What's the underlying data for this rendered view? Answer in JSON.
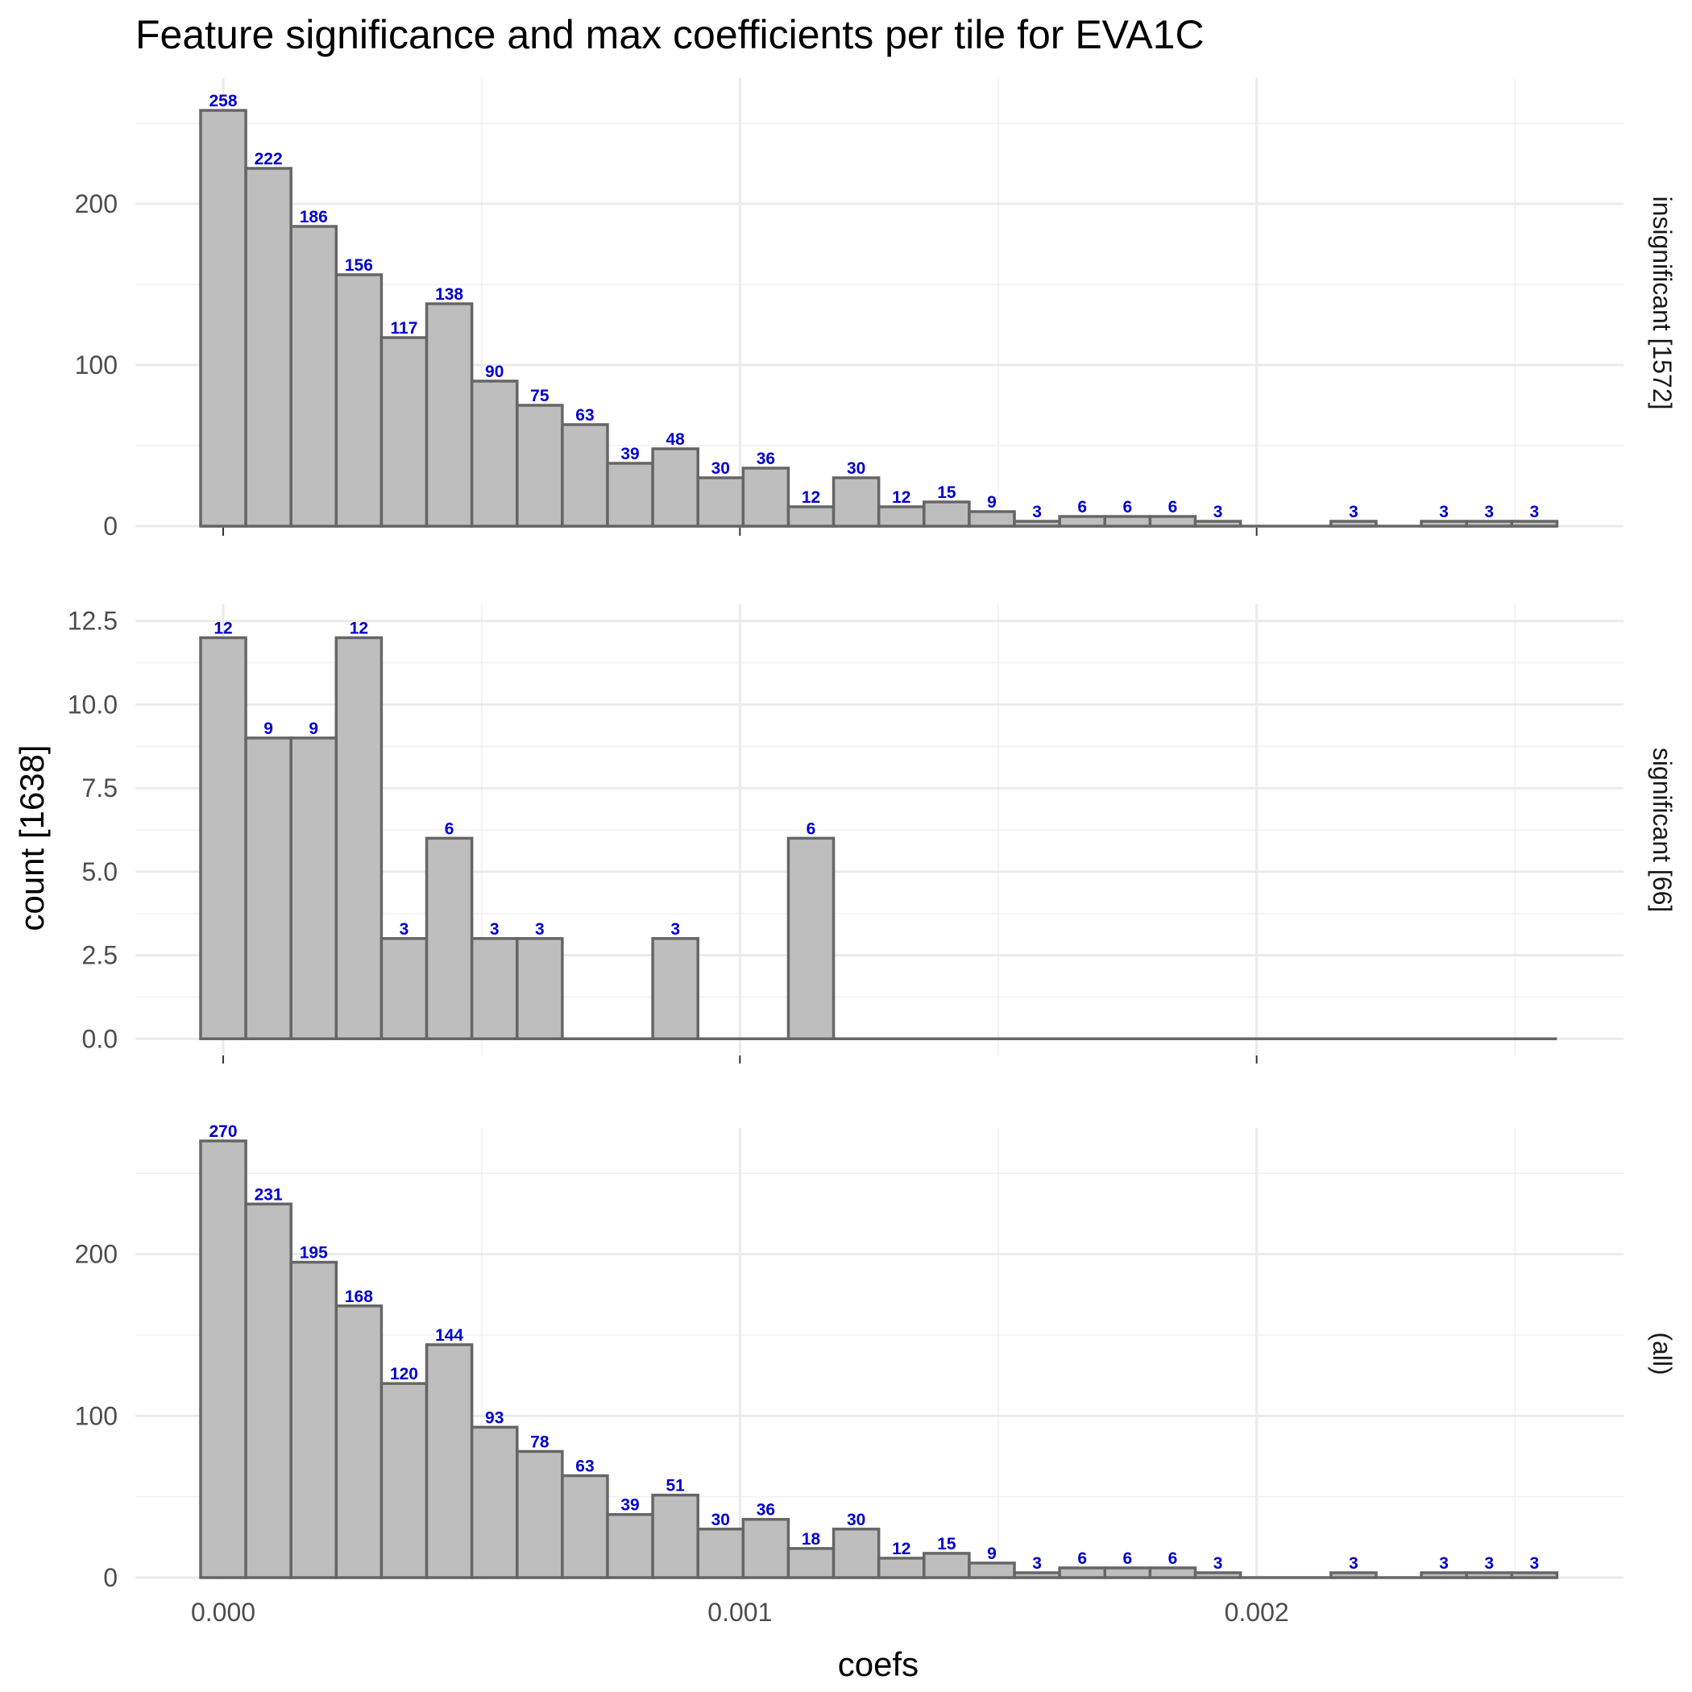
{
  "chart_data": {
    "type": "bar",
    "title": "Feature significance and max coefficients per tile for EVA1C",
    "xlabel": "coefs",
    "ylabel": "count [1638]",
    "bin_width": 8.75e-05,
    "x": [
      0.0,
      8.75e-05,
      0.000175,
      0.0002625,
      0.00035,
      0.0004375,
      0.000525,
      0.0006125,
      0.0007,
      0.0007875,
      0.000875,
      0.0009625,
      0.00105,
      0.0011375,
      0.001225,
      0.0013125,
      0.0014,
      0.0014875,
      0.001575,
      0.0016625,
      0.00175,
      0.0018375,
      0.001925,
      0.0020125,
      0.0021,
      0.0021875,
      0.002275,
      0.0023625,
      0.00245,
      0.0025375
    ],
    "xlim": [
      -0.00017,
      0.00271
    ],
    "x_ticks": [
      0.0,
      0.001,
      0.002
    ],
    "x_tick_labels": [
      "0.000",
      "0.001",
      "0.002"
    ],
    "panels": [
      {
        "name": "insignificant [1572]",
        "values": [
          258,
          222,
          186,
          156,
          117,
          138,
          90,
          75,
          63,
          39,
          48,
          30,
          36,
          12,
          30,
          12,
          15,
          9,
          3,
          6,
          6,
          6,
          3,
          0,
          0,
          3,
          0,
          3,
          3,
          3
        ],
        "labels": [
          "258",
          "222",
          "186",
          "156",
          "117",
          "138",
          "90",
          "75",
          "63",
          "39",
          "48",
          "30",
          "36",
          "12",
          "30",
          "12",
          "15",
          "9",
          "3",
          "6",
          "6",
          "6",
          "3",
          "",
          "",
          "3",
          "",
          "3",
          "3",
          "3"
        ],
        "ylim": [
          -1,
          278
        ],
        "y_ticks": [
          0,
          100,
          200
        ],
        "y_tick_labels": [
          "0",
          "100",
          "200"
        ]
      },
      {
        "name": "significant [66]",
        "values": [
          12,
          9,
          9,
          12,
          3,
          6,
          3,
          3,
          0,
          0,
          3,
          0,
          0,
          6,
          0,
          0,
          0,
          0,
          0,
          0,
          0,
          0,
          0,
          0,
          0,
          0,
          0,
          0,
          0,
          0
        ],
        "labels": [
          "12",
          "9",
          "9",
          "12",
          "3",
          "6",
          "3",
          "3",
          "",
          "",
          "3",
          "",
          "",
          "6",
          "",
          "",
          "",
          "",
          "",
          "",
          "",
          "",
          "",
          "",
          "",
          "",
          "",
          "",
          "",
          ""
        ],
        "ylim": [
          -0.5,
          13
        ],
        "y_ticks": [
          0,
          2.5,
          5,
          7.5,
          10,
          12.5
        ],
        "y_tick_labels": [
          "0.0",
          "2.5",
          "5.0",
          "7.5",
          "10.0",
          "12.5"
        ]
      },
      {
        "name": "(all)",
        "values": [
          270,
          231,
          195,
          168,
          120,
          144,
          93,
          78,
          63,
          39,
          51,
          30,
          36,
          18,
          30,
          12,
          15,
          9,
          3,
          6,
          6,
          6,
          3,
          0,
          0,
          3,
          0,
          3,
          3,
          3
        ],
        "labels": [
          "270",
          "231",
          "195",
          "168",
          "120",
          "144",
          "93",
          "78",
          "63",
          "39",
          "51",
          "30",
          "36",
          "18",
          "30",
          "12",
          "15",
          "9",
          "3",
          "6",
          "6",
          "6",
          "3",
          "",
          "",
          "3",
          "",
          "3",
          "3",
          "3"
        ],
        "ylim": [
          -1,
          278
        ],
        "y_ticks": [
          0,
          100,
          200
        ],
        "y_tick_labels": [
          "0",
          "100",
          "200"
        ]
      }
    ],
    "grid": true,
    "legend": "none",
    "colors": {
      "bar_fill": "#bebebe",
      "bar_outline": "#666666",
      "bar_label": "#0000cc"
    }
  }
}
